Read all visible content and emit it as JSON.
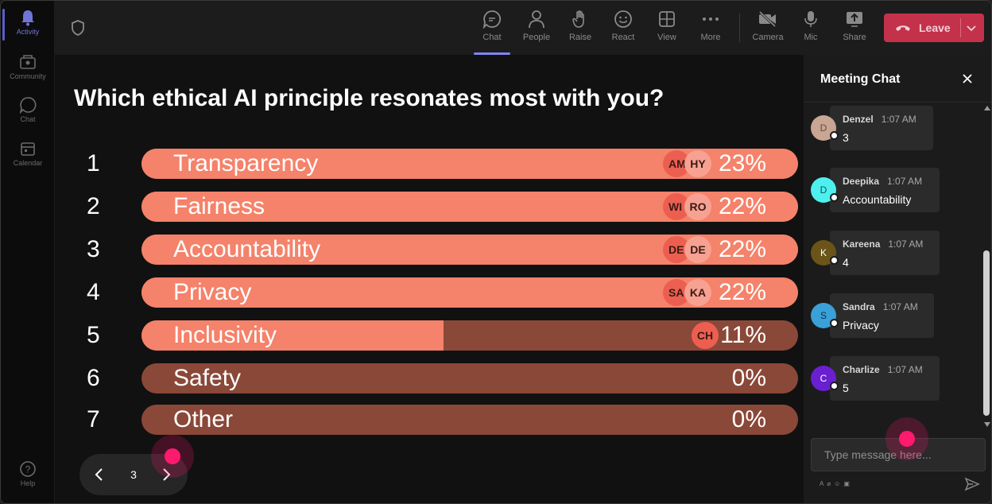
{
  "rail": {
    "items": [
      {
        "label": "Activity",
        "icon": "bell-icon",
        "active": true
      },
      {
        "label": "Community",
        "icon": "community-icon"
      },
      {
        "label": "Chat",
        "icon": "chat-icon"
      },
      {
        "label": "Calendar",
        "icon": "calendar-icon"
      },
      {
        "label": "Help",
        "icon": "help-icon"
      }
    ]
  },
  "toolbar": {
    "buttons": [
      {
        "label": "Chat",
        "icon": "chat-icon",
        "active": true
      },
      {
        "label": "People",
        "icon": "people-icon"
      },
      {
        "label": "Raise",
        "icon": "raise-hand-icon"
      },
      {
        "label": "React",
        "icon": "react-icon"
      },
      {
        "label": "View",
        "icon": "view-grid-icon"
      },
      {
        "label": "More",
        "icon": "more-icon"
      },
      {
        "label": "Camera",
        "icon": "camera-off-icon"
      },
      {
        "label": "Mic",
        "icon": "mic-icon"
      },
      {
        "label": "Share",
        "icon": "share-icon"
      }
    ],
    "leave_label": "Leave",
    "leave_color": "#c4314b"
  },
  "poll": {
    "question": "Which ethical AI principle resonates most with you?",
    "bar_color": "#f5826a",
    "track_color": "#8a4838",
    "options": [
      {
        "num": "1",
        "label": "Transparency",
        "pct": "23%",
        "fraction": 1.0,
        "avatars": [
          "AM",
          "HY"
        ]
      },
      {
        "num": "2",
        "label": "Fairness",
        "pct": "22%",
        "fraction": 1.0,
        "avatars": [
          "WI",
          "RO"
        ]
      },
      {
        "num": "3",
        "label": "Accountability",
        "pct": "22%",
        "fraction": 1.0,
        "avatars": [
          "DE",
          "DE"
        ]
      },
      {
        "num": "4",
        "label": "Privacy",
        "pct": "22%",
        "fraction": 1.0,
        "avatars": [
          "SA",
          "KA"
        ]
      },
      {
        "num": "5",
        "label": "Inclusivity",
        "pct": "11%",
        "fraction": 0.46,
        "avatars": [
          "CH"
        ]
      },
      {
        "num": "6",
        "label": "Safety",
        "pct": "0%",
        "fraction": 0,
        "avatars": []
      },
      {
        "num": "7",
        "label": "Other",
        "pct": "0%",
        "fraction": 0,
        "avatars": []
      }
    ],
    "page": "3"
  },
  "chat": {
    "title": "Meeting Chat",
    "messages": [
      {
        "initial": "D",
        "name": "Denzel",
        "time": "1:07 AM",
        "text": "3",
        "avatar_color": "#c9a593",
        "initial_color": "#6b4a3a"
      },
      {
        "initial": "D",
        "name": "Deepika",
        "time": "1:07 AM",
        "text": "Accountability",
        "avatar_color": "#4ef0ef",
        "initial_color": "#0a5a5a"
      },
      {
        "initial": "K",
        "name": "Kareena",
        "time": "1:07 AM",
        "text": "4",
        "avatar_color": "#6a5417",
        "initial_color": "#ffffff"
      },
      {
        "initial": "S",
        "name": "Sandra",
        "time": "1:07 AM",
        "text": "Privacy",
        "avatar_color": "#3aa0d8",
        "initial_color": "#0a3550"
      },
      {
        "initial": "C",
        "name": "Charlize",
        "time": "1:07 AM",
        "text": "5",
        "avatar_color": "#6a1fd0",
        "initial_color": "#ffffff"
      }
    ],
    "input_placeholder": "Type message here..."
  }
}
